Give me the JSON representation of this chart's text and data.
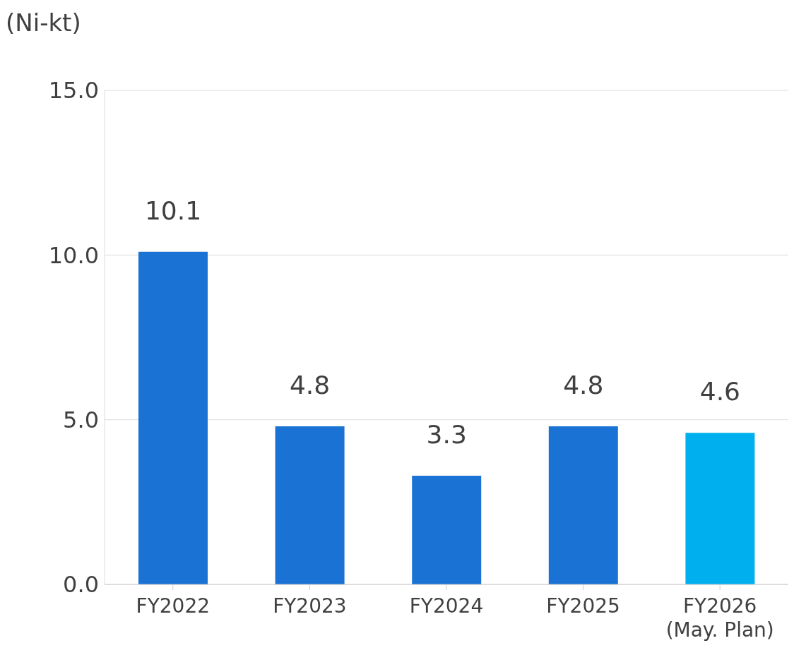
{
  "chart_data": {
    "type": "bar",
    "ylabel": "(Ni-kt)",
    "categories": [
      "FY2022",
      "FY2023",
      "FY2024",
      "FY2025",
      "FY2026\n(May. Plan)"
    ],
    "values": [
      10.1,
      4.8,
      3.3,
      4.8,
      4.6
    ],
    "colors": [
      "#1a73d4",
      "#1a73d4",
      "#1a73d4",
      "#1a73d4",
      "#00b0ee"
    ],
    "ylim": [
      0,
      15
    ],
    "yticks": [
      {
        "value": 0,
        "label": "0.0"
      },
      {
        "value": 5,
        "label": "5.0"
      },
      {
        "value": 10,
        "label": "10.0"
      },
      {
        "value": 15,
        "label": "15.0"
      }
    ],
    "grid": "y",
    "data_labels": true
  }
}
